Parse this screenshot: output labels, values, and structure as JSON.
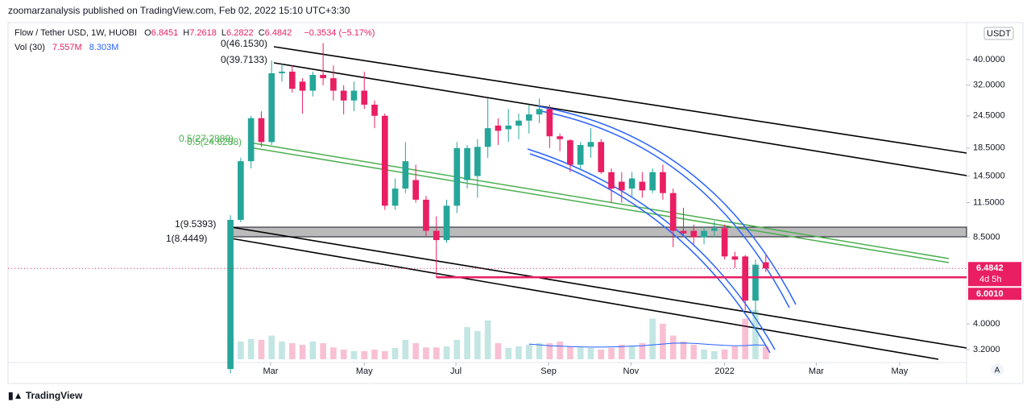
{
  "header": "zoomarzanalysis published on TradingView.com, Feb 02, 2022 15:10 UTC+3:30",
  "legend": {
    "symbol": "Flow / Tether USD, 1W, HUOBI",
    "items": [
      {
        "key": "O",
        "value": "6.8451"
      },
      {
        "key": "H",
        "value": "7.2618"
      },
      {
        "key": "L",
        "value": "6.2822"
      },
      {
        "key": "C",
        "value": "6.4842"
      }
    ],
    "change": "−0.3534 (−5.17%)",
    "volume_label": "Vol (30)",
    "volume_value": "7.557M",
    "volume_ma_value": "8.303M"
  },
  "annotations": [
    "0(46.1530)",
    "0(39.7133)",
    "0.5(27.2889)",
    "0.5(24.6288)",
    "1(9.5393)",
    "1(8.4449)"
  ],
  "currency": "USDT",
  "footer": "TradingView",
  "scale_mode": "A",
  "chart_data": {
    "type": "candlestick",
    "log_scale": true,
    "up_color": "#26a69a",
    "down_color": "#e91e63",
    "categories": [
      null,
      null,
      null,
      null,
      null,
      null,
      null,
      null,
      null,
      null,
      null,
      null,
      null,
      null,
      null,
      null,
      null,
      null,
      null,
      null,
      null,
      null,
      null,
      null,
      null,
      null,
      null,
      null,
      null,
      null,
      null,
      null,
      null,
      null,
      null,
      null,
      null,
      null,
      null,
      null,
      null,
      null,
      null,
      null,
      null,
      null,
      null,
      null,
      null,
      null,
      null,
      null,
      null
    ],
    "open": [
      2.7,
      9.9,
      16.5,
      24,
      19.5,
      35.5,
      36,
      33,
      30.5,
      35,
      34,
      30.5,
      28,
      30.5,
      27,
      24.5,
      11.2,
      13,
      14,
      11.8,
      9,
      8.3,
      11.2,
      14,
      14.5,
      18.7,
      22.5,
      21.8,
      22.5,
      23.5,
      24.8,
      26,
      20.5,
      19.8,
      16,
      18.7,
      19.5,
      15,
      13.8,
      13,
      13.8,
      12.8,
      15,
      12.5,
      9,
      9,
      8.5,
      9,
      9.2,
      7.2,
      7.2,
      4.9,
      6.8451
    ],
    "high": [
      10.3,
      17,
      24.5,
      25.5,
      39.7133,
      38.5,
      38,
      34,
      36,
      46.153,
      38,
      32,
      33,
      36,
      28,
      25,
      14.2,
      19.5,
      16,
      12.2,
      10.2,
      11.8,
      19.5,
      19,
      20,
      28.5,
      24,
      26,
      25,
      27,
      28.5,
      27,
      21,
      20,
      19.5,
      22,
      20,
      15.5,
      15,
      15,
      15,
      15.5,
      16,
      13,
      11,
      9.5,
      9.3,
      9.8,
      9.5,
      7.5,
      7.3,
      7.0,
      7.2618
    ],
    "low": [
      2.6,
      9.7,
      15.5,
      18.7,
      19,
      33,
      30,
      25,
      29,
      32,
      28,
      24.8,
      25.5,
      26,
      22,
      10.8,
      10.8,
      12.5,
      11.5,
      8.6,
      6.001,
      8.1,
      10.5,
      13,
      12,
      17,
      19,
      19.5,
      20,
      21,
      23,
      18.5,
      18,
      15,
      15.3,
      17,
      14.8,
      11.5,
      11.5,
      12,
      12,
      12.5,
      11.8,
      7.8,
      8.5,
      8,
      8,
      8.5,
      7,
      6.5,
      4.5,
      4.4,
      6.2822
    ],
    "close": [
      9.9,
      16.5,
      24,
      19.5,
      35.5,
      36,
      31,
      30.5,
      35,
      34,
      30.5,
      28,
      30.5,
      27,
      24.5,
      11.2,
      13,
      16.5,
      11.8,
      9,
      8.3,
      11.2,
      18.5,
      18.5,
      18.7,
      22,
      21.5,
      22.5,
      23.5,
      24.8,
      26,
      20.5,
      20,
      16,
      19,
      19.5,
      15,
      13,
      12.8,
      14.2,
      12.8,
      15,
      12.5,
      9,
      8.8,
      8.5,
      9,
      9.2,
      7.2,
      7.0,
      4.9,
      6.7,
      6.4842
    ],
    "volume": [
      14,
      10.5,
      12,
      11.5,
      14,
      10.5,
      9.5,
      8.5,
      10.5,
      9.5,
      7,
      5.7,
      4.8,
      4.8,
      5.7,
      4.8,
      6.7,
      11.5,
      9.5,
      7,
      7,
      7.6,
      11.5,
      19,
      16.7,
      23,
      9.5,
      6.7,
      7.6,
      8.6,
      9.5,
      9.5,
      10.5,
      7.6,
      7,
      6.7,
      5.7,
      6.7,
      8.6,
      7.6,
      9.5,
      24,
      21,
      14,
      10.5,
      8.6,
      5.7,
      4.8,
      5.7,
      7.6,
      24,
      29,
      7.557
    ],
    "volume_ma": [
      null,
      null,
      null,
      null,
      null,
      null,
      null,
      null,
      null,
      null,
      null,
      null,
      null,
      null,
      null,
      null,
      null,
      null,
      null,
      null,
      null,
      null,
      null,
      null,
      null,
      null,
      null,
      null,
      null,
      9,
      8.5,
      8,
      7.8,
      7.5,
      7.3,
      7.2,
      7.2,
      7.3,
      7.5,
      7.8,
      8,
      8.5,
      9,
      9.5,
      9.6,
      9.4,
      9,
      8.6,
      8.2,
      8,
      8.1,
      8.5,
      8.303
    ],
    "volume_ma_color": "#2962ff",
    "volume_lim": [
      0,
      60
    ],
    "xlim": [
      -21.6,
      71.5
    ],
    "xticks": [
      {
        "value": 3.9,
        "label": "Mar"
      },
      {
        "value": 13,
        "label": "May"
      },
      {
        "value": 21.9,
        "label": "Jul"
      },
      {
        "value": 30.9,
        "label": "Sep"
      },
      {
        "value": 38.9,
        "label": "Nov"
      },
      {
        "value": 48,
        "label": "2022"
      },
      {
        "value": 56.9,
        "label": "Mar"
      },
      {
        "value": 65,
        "label": "May"
      }
    ],
    "ylim": [
      2.45,
      55.2
    ],
    "yticks": [
      {
        "value": 40,
        "label": "40.0000"
      },
      {
        "value": 32,
        "label": "32.0000"
      },
      {
        "value": 24.5,
        "label": "24.5000"
      },
      {
        "value": 18.5,
        "label": "18.5000"
      },
      {
        "value": 14.5,
        "label": "14.5000"
      },
      {
        "value": 11.5,
        "label": "11.5000"
      },
      {
        "value": 8.5,
        "label": "8.5000"
      },
      {
        "value": 4,
        "label": "4.0000"
      },
      {
        "value": 3.2,
        "label": "3.2000"
      }
    ],
    "price_lines": [
      {
        "value": 6.4842,
        "label": "6.4842",
        "countdown": "4d 5h"
      },
      {
        "value": 6.001,
        "label": "6.0010"
      }
    ]
  }
}
